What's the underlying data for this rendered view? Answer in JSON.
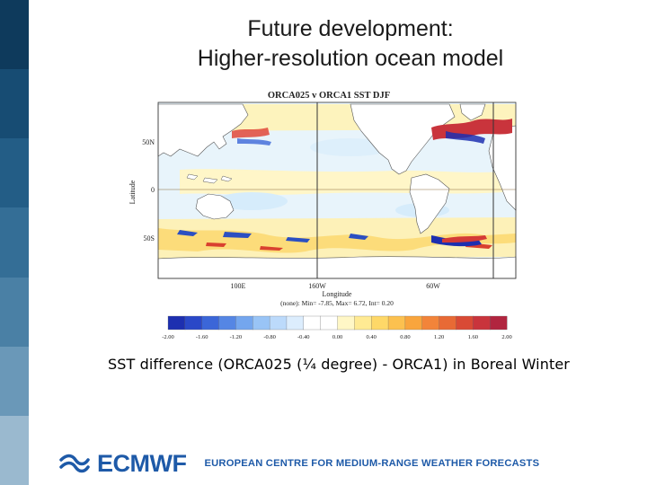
{
  "slide": {
    "title_line1": "Future development:",
    "title_line2": "Higher-resolution ocean model",
    "caption": "SST difference (ORCA025 (¼ degree) - ORCA1) in Boreal Winter"
  },
  "figure": {
    "plot_title": "ORCA025 v ORCA1 SST DJF",
    "y_axis_label": "Latitude",
    "x_axis_label": "Longitude",
    "y_ticks": [
      "50N",
      "0",
      "50S"
    ],
    "x_ticks": [
      "100E",
      "160W",
      "60W"
    ],
    "stats_line": "(none): Min= -7.85, Max= 6.72, Int= 0.20",
    "colorbar_ticks": [
      "-2.00",
      "-1.60",
      "-1.20",
      "-0.80",
      "-0.40",
      "0.00",
      "0.40",
      "0.80",
      "1.20",
      "1.60",
      "2.00"
    ],
    "colorbar_colors": [
      "#1d2fb0",
      "#2a48c8",
      "#3b66d8",
      "#5586e4",
      "#74a6ee",
      "#99c4f6",
      "#bcdafb",
      "#dcedfd",
      "#ffffff",
      "#ffffff",
      "#fff7c6",
      "#ffea93",
      "#fed868",
      "#fcc14f",
      "#f9a53d",
      "#f2843a",
      "#e86a35",
      "#d94a35",
      "#c9343c",
      "#b1253f"
    ]
  },
  "footer": {
    "brand": "ECMWF",
    "tagline": "EUROPEAN CENTRE FOR MEDIUM-RANGE WEATHER FORECASTS"
  }
}
